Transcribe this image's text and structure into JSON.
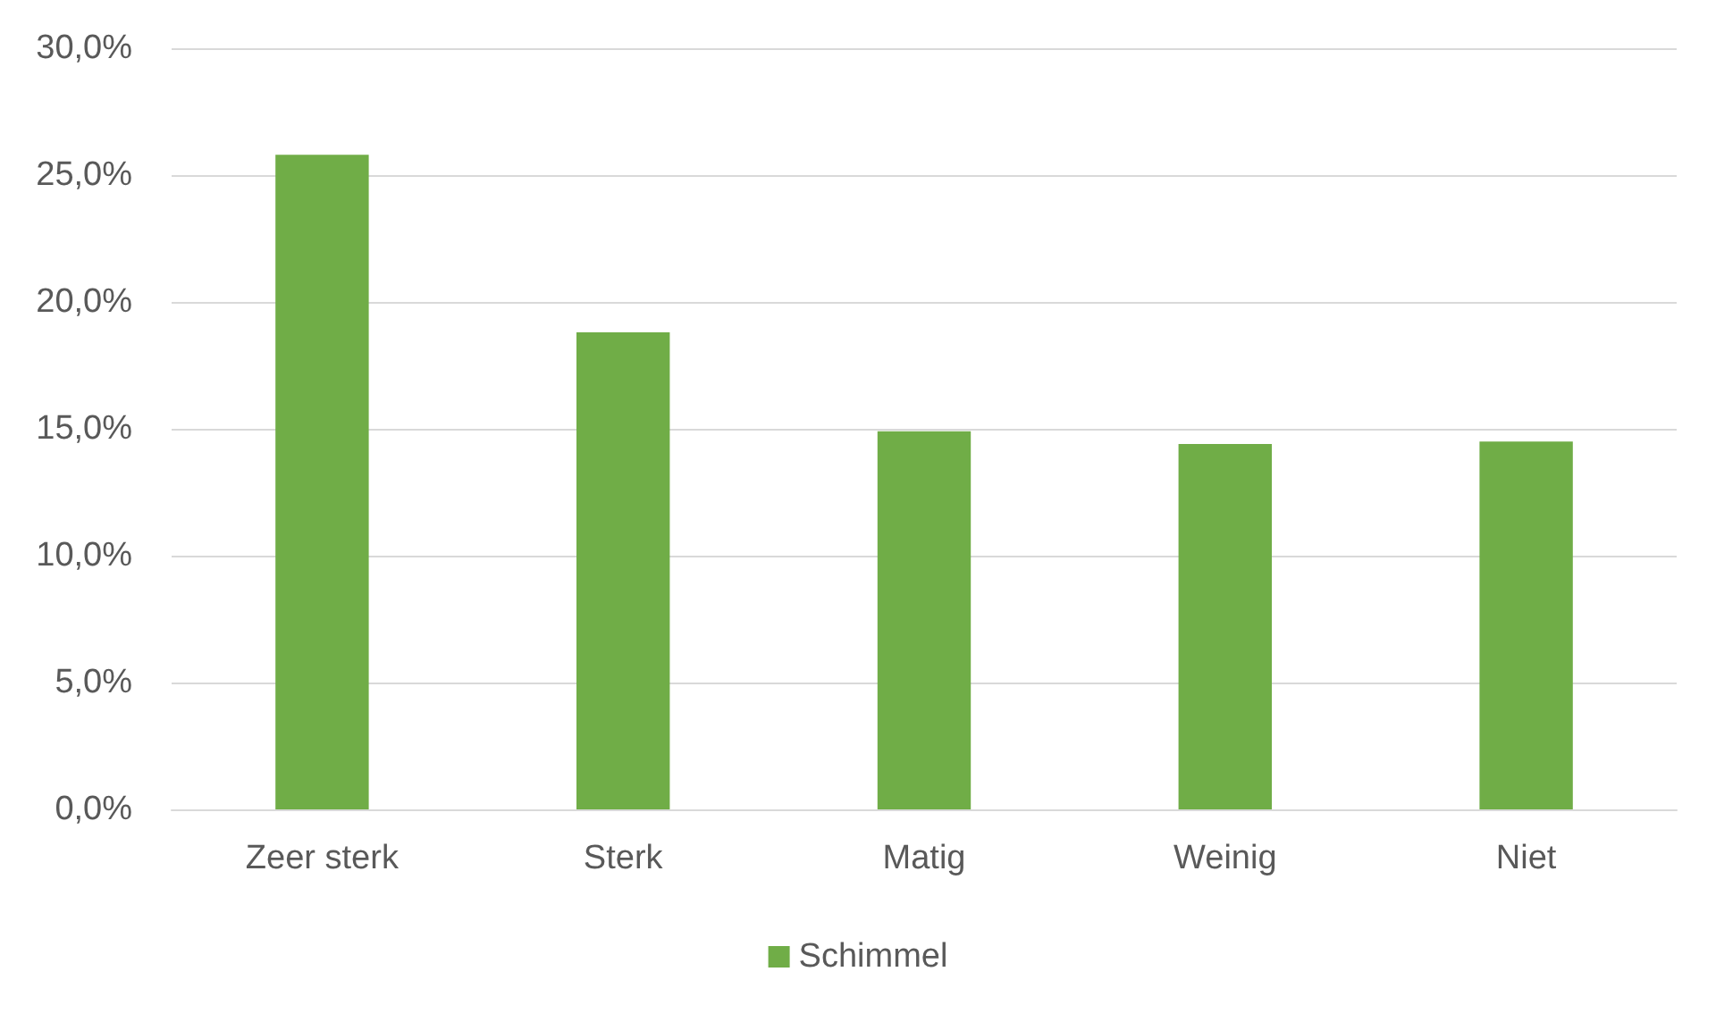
{
  "chart_data": {
    "type": "bar",
    "categories": [
      "Zeer sterk",
      "Sterk",
      "Matig",
      "Weinig",
      "Niet"
    ],
    "series": [
      {
        "name": "Schimmel",
        "color": "#70ad47",
        "values": [
          25.8,
          18.8,
          14.9,
          14.4,
          14.5
        ]
      }
    ],
    "ylim": [
      0,
      30
    ],
    "yticks": [
      {
        "value": 0,
        "label": "0,0%"
      },
      {
        "value": 5,
        "label": "5,0%"
      },
      {
        "value": 10,
        "label": "10,0%"
      },
      {
        "value": 15,
        "label": "15,0%"
      },
      {
        "value": 20,
        "label": "20,0%"
      },
      {
        "value": 25,
        "label": "25,0%"
      },
      {
        "value": 30,
        "label": "30,0%"
      }
    ],
    "grid": "y",
    "legend": "bottom"
  }
}
